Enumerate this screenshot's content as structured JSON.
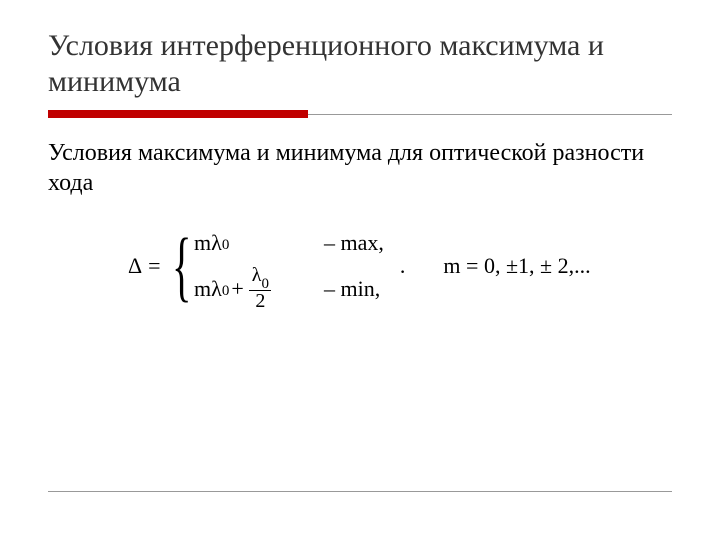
{
  "title": "Условия интерференционного максимума и минимума",
  "subtitle": "Условия максимума и минимума для оптической разности хода",
  "colors": {
    "accent_red": "#c00000",
    "rule_gray": "#999999",
    "text": "#000000",
    "title_text": "#333333",
    "background": "#ffffff"
  },
  "layout": {
    "red_bar_width": 260,
    "red_bar_height": 8
  },
  "formula": {
    "lhs_symbol": "Δ",
    "lhs_equals": "=",
    "cases": [
      {
        "expr_m": "m",
        "expr_lambda": "λ",
        "expr_sub": "0",
        "has_half": false,
        "label_dash": "–",
        "label_text": "max,"
      },
      {
        "expr_m": "m",
        "expr_lambda": "λ",
        "expr_sub": "0",
        "has_half": true,
        "plus": "+",
        "half_num_lambda": "λ",
        "half_num_sub": "0",
        "half_den": "2",
        "label_dash": "–",
        "label_text": "min,"
      }
    ],
    "dot": ".",
    "m_values": "m = 0, ±1, ± 2,..."
  }
}
